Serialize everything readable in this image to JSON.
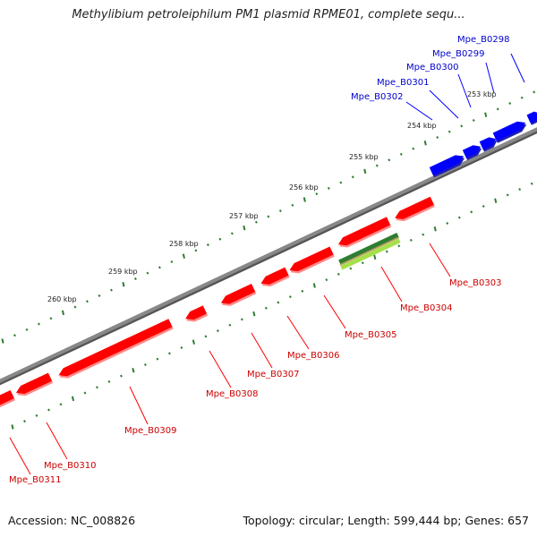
{
  "title": "Methylibium petroleiphilum PM1 plasmid RPME01, complete sequ...",
  "footer": {
    "accession": "Accession: NC_008826",
    "summary": "Topology: circular; Length: 599,444 bp; Genes: 657"
  },
  "ticks": [
    {
      "label": "253 kbp",
      "kbp": 253
    },
    {
      "label": "254 kbp",
      "kbp": 254
    },
    {
      "label": "255 kbp",
      "kbp": 255
    },
    {
      "label": "256 kbp",
      "kbp": 256
    },
    {
      "label": "257 kbp",
      "kbp": 257
    },
    {
      "label": "258 kbp",
      "kbp": 258
    },
    {
      "label": "259 kbp",
      "kbp": 259
    },
    {
      "label": "260 kbp",
      "kbp": 260
    }
  ],
  "genes_forward": [
    "Mpe_B0298",
    "Mpe_B0299",
    "Mpe_B0300",
    "Mpe_B0301",
    "Mpe_B0302"
  ],
  "genes_reverse": [
    "Mpe_B0303",
    "Mpe_B0304",
    "Mpe_B0305",
    "Mpe_B0306",
    "Mpe_B0307",
    "Mpe_B0308",
    "Mpe_B0309",
    "Mpe_B0310",
    "Mpe_B0311"
  ],
  "colors": {
    "forward_gene": "#0000ff",
    "reverse_gene": "#ff0000",
    "backbone": "#808080",
    "tick": "#2e7d32",
    "rna_dark": "#2e7d32",
    "rna_light": "#a5e04a",
    "forward_label": "#0000cc",
    "reverse_label": "#cc0000"
  }
}
